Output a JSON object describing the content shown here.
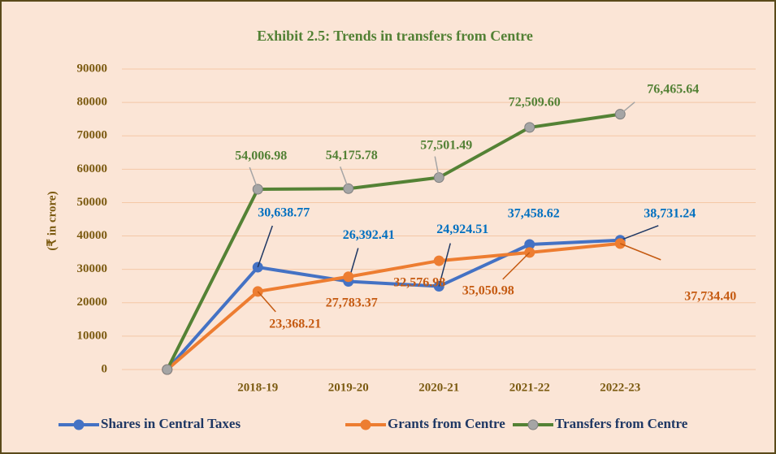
{
  "chart_data": {
    "type": "line",
    "title": "Exhibit 2.5: Trends in transfers from Centre",
    "y_label": "(₹ in crore)",
    "categories": [
      null,
      "2018-19",
      "2019-20",
      "2020-21",
      "2021-22",
      "2022-23"
    ],
    "series": [
      {
        "name": "Shares in Central Taxes",
        "color": "#4472c4",
        "label_color": "#0070c0",
        "values": [
          0,
          30638.77,
          26392.41,
          24924.51,
          37458.62,
          38731.24
        ],
        "value_labels": [
          null,
          "30,638.77",
          "26,392.41",
          "24,924.51",
          "37,458.62",
          "38,731.24"
        ]
      },
      {
        "name": "Grants from Centre",
        "color": "#ed7d31",
        "label_color": "#c55a11",
        "values": [
          0,
          23368.21,
          27783.37,
          32576.98,
          35050.98,
          37734.4
        ],
        "value_labels": [
          null,
          "23,368.21",
          "27,783.37",
          "32,576.98",
          "35,050.98",
          "37,734.40"
        ]
      },
      {
        "name": "Transfers from Centre",
        "color": "#548235",
        "label_color": "#538135",
        "marker_color": "#a5a5a5",
        "values": [
          0,
          54006.98,
          54175.78,
          57501.49,
          72509.6,
          76465.64
        ],
        "value_labels": [
          null,
          "54,006.98",
          "54,175.78",
          "57,501.49",
          "72,509.60",
          "76,465.64"
        ]
      }
    ],
    "ylim": [
      0,
      90000
    ],
    "yticks": [
      0,
      10000,
      20000,
      30000,
      40000,
      50000,
      60000,
      70000,
      80000,
      90000
    ],
    "grid": true,
    "legend": "bottom"
  }
}
